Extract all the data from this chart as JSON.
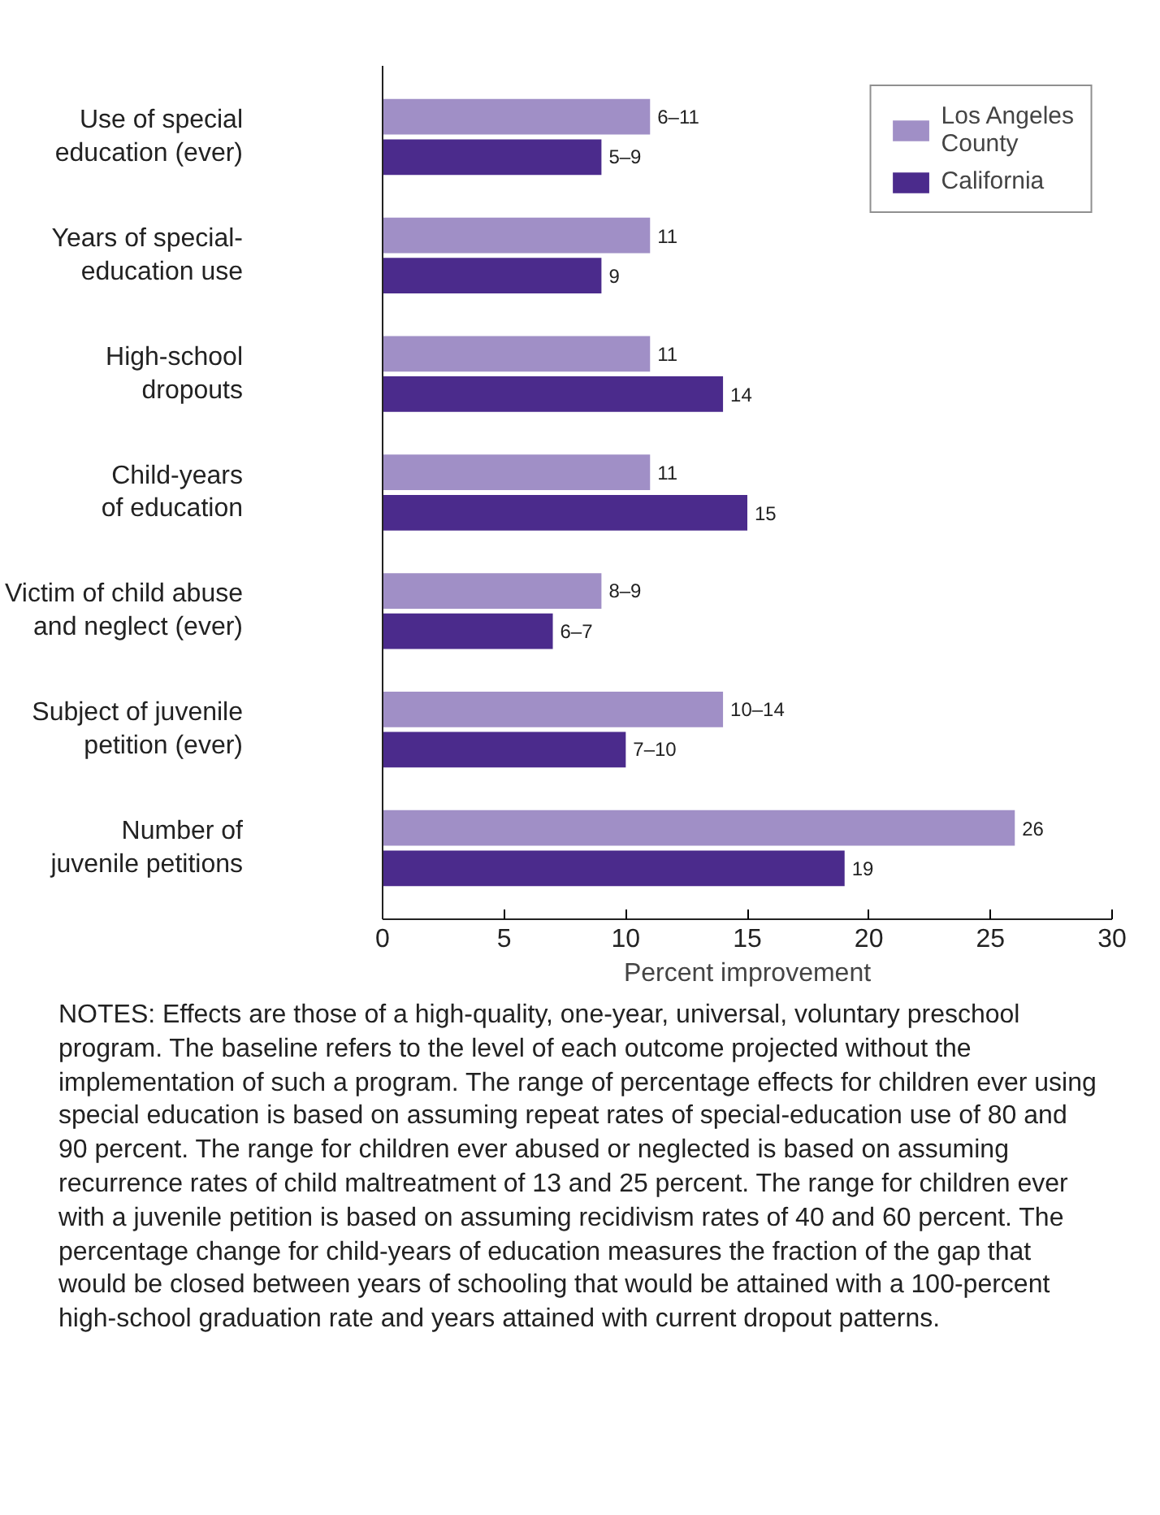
{
  "chart_data": {
    "type": "bar",
    "orientation": "horizontal",
    "xlabel": "Percent improvement",
    "categories": [
      "Use of special\neducation (ever)",
      "Years of special-\neducation use",
      "High-school\ndropouts",
      "Child-years\nof education",
      "Victim of child abuse\nand neglect (ever)",
      "Subject of juvenile\npetition (ever)",
      "Number of\njuvenile petitions"
    ],
    "series": [
      {
        "name": "Los Angeles\nCounty",
        "color": "#a08fc6",
        "values": [
          11,
          11,
          11,
          11,
          9,
          14,
          26
        ],
        "value_labels": [
          "6–11",
          "11",
          "11",
          "11",
          "8–9",
          "10–14",
          "26"
        ]
      },
      {
        "name": "California",
        "color": "#4b2b8c",
        "values": [
          9,
          9,
          14,
          15,
          7,
          10,
          19
        ],
        "value_labels": [
          "5–9",
          "9",
          "14",
          "15",
          "6–7",
          "7–10",
          "19"
        ]
      }
    ],
    "xlim": [
      0,
      30
    ],
    "xticks": [
      0,
      5,
      10,
      15,
      20,
      25,
      30
    ],
    "grid": false,
    "legend": "top right",
    "annotations": [
      "NOTES: Effects are those of a high-quality, one-year, universal, voluntary preschool program. The baseline refers to the level of each outcome projected without the implementation of such a program. The range of percentage effects for children ever using special education is based on assuming repeat rates of special-education use of 80 and 90 percent. The range for children ever abused or neglected is based on assuming recurrence rates of child maltreatment of 13 and 25 percent. The range for children ever with a juvenile petition is based on assuming recidivism rates of 40 and 60 percent. The percentage change for child-years of education measures the fraction of the gap that would be closed between years of schooling that would be attained with a 100-percent high-school graduation rate and years attained with current dropout patterns."
    ]
  }
}
